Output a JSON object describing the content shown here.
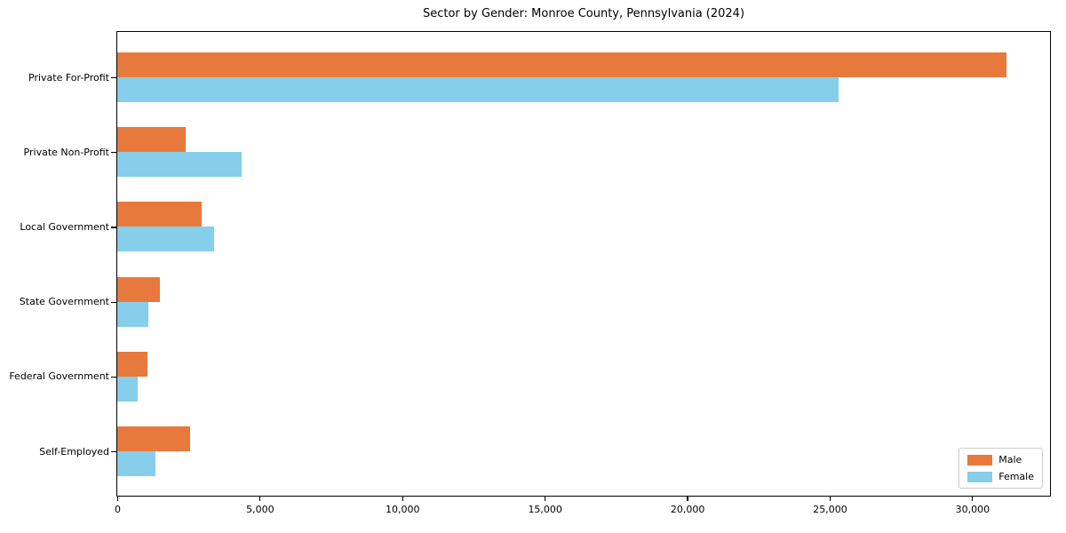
{
  "chart_data": {
    "type": "bar",
    "orientation": "horizontal",
    "title": "Sector by Gender: Monroe County, Pennsylvania (2024)",
    "xlabel": "",
    "ylabel": "",
    "categories": [
      "Private For-Profit",
      "Private Non-Profit",
      "Local Government",
      "State Government",
      "Federal Government",
      "Self-Employed"
    ],
    "series": [
      {
        "name": "Male",
        "color": "#e8793c",
        "values": [
          31200,
          2400,
          2950,
          1500,
          1050,
          2550
        ]
      },
      {
        "name": "Female",
        "color": "#87ceea",
        "values": [
          25300,
          4350,
          3400,
          1100,
          700,
          1350
        ]
      }
    ],
    "xlim": [
      0,
      32700
    ],
    "xticks": [
      0,
      5000,
      10000,
      15000,
      20000,
      25000,
      30000
    ],
    "xtick_labels": [
      "0",
      "5,000",
      "10,000",
      "15,000",
      "20,000",
      "25,000",
      "30,000"
    ],
    "grid": false,
    "legend_position": "lower right",
    "background_color": "#ffffff",
    "spine_color": "#000000"
  }
}
